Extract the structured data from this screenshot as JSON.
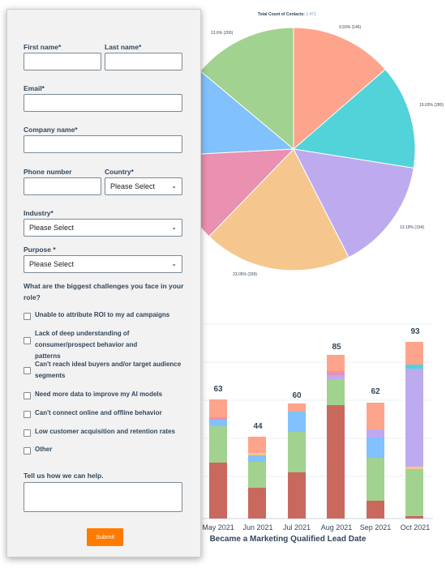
{
  "pie_chart": {
    "title_label": "Total Count of Contacts:",
    "title_value": "1,471",
    "slices": [
      {
        "label": "9.93% (146)",
        "color": "#ffa48c"
      },
      {
        "label": "19.03% (280)",
        "color": "#51d3d9"
      },
      {
        "label": "13.19% (194)",
        "color": "#beaaee"
      },
      {
        "label": "23.05% (339)",
        "color": "#f5c78e"
      },
      {
        "label": "",
        "color": "#ea90b1"
      },
      {
        "label": "",
        "color": "#81c1fd"
      },
      {
        "label": "13.6% (200)",
        "color": "#a2d28f"
      }
    ]
  },
  "bar_chart": {
    "x_title": "Became a Marketing Qualified Lead Date",
    "categories": [
      "May 2021",
      "Jun 2021",
      "Jul 2021",
      "Aug 2021",
      "Sep 2021",
      "Oct 2021"
    ],
    "totals": [
      "63",
      "44",
      "60",
      "85",
      "62",
      "93"
    ],
    "colors": {
      "brown": "#c9695e",
      "green": "#a2d28f",
      "blue": "#81c1fd",
      "peach": "#ffa48c",
      "purple": "#beaaee",
      "pink": "#ea90b1",
      "yellow": "#f5c78e",
      "teal": "#51d3d9"
    }
  },
  "form": {
    "first_name_label": "First name*",
    "last_name_label": "Last name*",
    "email_label": "Email*",
    "company_label": "Company name*",
    "phone_label": "Phone number",
    "country_label": "Country*",
    "country_value": "Please Select",
    "industry_label": "Industry*",
    "industry_value": "Please Select",
    "purpose_label": "Purpose *",
    "purpose_value": "Please Select",
    "challenges_question": "What are the biggest challenges you face in your role?",
    "challenges": [
      "Unable to attribute ROI to my ad campaigns",
      "Lack of deep understanding of consumer/prospect behavior and patterns",
      "Can't reach ideal buyers and/or target audience segments",
      "Need more data to improve my AI models",
      "Can't connect online and offline behavior",
      "Low customer acquisition and retention rates",
      "Other"
    ],
    "help_label": "Tell us how we can help.",
    "submit_label": "Submit"
  }
}
